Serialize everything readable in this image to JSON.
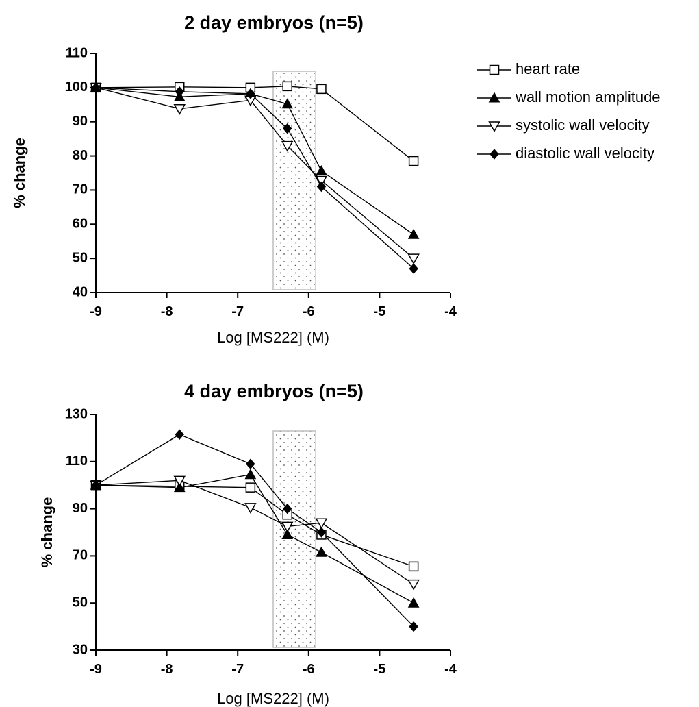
{
  "chart_data": [
    {
      "type": "line",
      "title": "2 day embryos (n=5)",
      "xlabel": "Log [MS222] (M)",
      "ylabel": "% change",
      "xlim": [
        -9,
        -4
      ],
      "ylim": [
        40,
        110
      ],
      "xticks": [
        -9,
        -8,
        -7,
        -6,
        -5,
        -4
      ],
      "yticks": [
        40,
        50,
        60,
        70,
        80,
        90,
        100,
        110
      ],
      "shaded_region": [
        -6.5,
        -5.9
      ],
      "legend": "top-right",
      "series": [
        {
          "name": "heart rate",
          "marker": "square-open",
          "x": [
            -9,
            -7.82,
            -6.82,
            -6.3,
            -5.82,
            -4.52
          ],
          "y": [
            100,
            100.2,
            100,
            100.4,
            99.6,
            78.5
          ]
        },
        {
          "name": "wall motion amplitude",
          "marker": "triangle-up-filled",
          "x": [
            -9,
            -7.82,
            -6.82,
            -6.3,
            -5.82,
            -4.52
          ],
          "y": [
            100,
            97.3,
            98.2,
            95.2,
            75.6,
            57
          ]
        },
        {
          "name": "systolic wall velocity",
          "marker": "triangle-down-open",
          "x": [
            -9,
            -7.82,
            -6.82,
            -6.3,
            -5.82,
            -4.52
          ],
          "y": [
            100,
            93.8,
            96.3,
            83,
            72.8,
            50
          ]
        },
        {
          "name": "diastolic wall velocity",
          "marker": "diamond-filled",
          "x": [
            -9,
            -7.82,
            -6.82,
            -6.3,
            -5.82,
            -4.52
          ],
          "y": [
            100,
            98.8,
            98.2,
            88,
            71,
            47
          ]
        }
      ]
    },
    {
      "type": "line",
      "title": "4 day embryos (n=5)",
      "xlabel": "Log [MS222] (M)",
      "ylabel": "% change",
      "xlim": [
        -9,
        -4
      ],
      "ylim": [
        30,
        130
      ],
      "xticks": [
        -9,
        -8,
        -7,
        -6,
        -5,
        -4
      ],
      "yticks": [
        30,
        50,
        70,
        90,
        110,
        130
      ],
      "shaded_region": [
        -6.5,
        -5.9
      ],
      "series": [
        {
          "name": "heart rate",
          "marker": "square-open",
          "x": [
            -9,
            -7.82,
            -6.82,
            -6.3,
            -5.82,
            -4.52
          ],
          "y": [
            100,
            99.5,
            99,
            87.5,
            79,
            65.5
          ]
        },
        {
          "name": "wall motion amplitude",
          "marker": "triangle-up-filled",
          "x": [
            -9,
            -7.82,
            -6.82,
            -6.3,
            -5.82,
            -4.52
          ],
          "y": [
            100,
            99,
            104.5,
            79,
            71.5,
            50
          ]
        },
        {
          "name": "systolic wall velocity",
          "marker": "triangle-down-open",
          "x": [
            -9,
            -7.82,
            -6.82,
            -6.3,
            -5.82,
            -4.52
          ],
          "y": [
            100,
            102,
            90.5,
            82.5,
            84,
            58
          ]
        },
        {
          "name": "diastolic wall velocity",
          "marker": "diamond-filled",
          "x": [
            -9,
            -7.82,
            -6.82,
            -6.3,
            -5.82,
            -4.52
          ],
          "y": [
            100,
            121.5,
            109,
            90,
            80,
            40
          ]
        }
      ]
    }
  ]
}
